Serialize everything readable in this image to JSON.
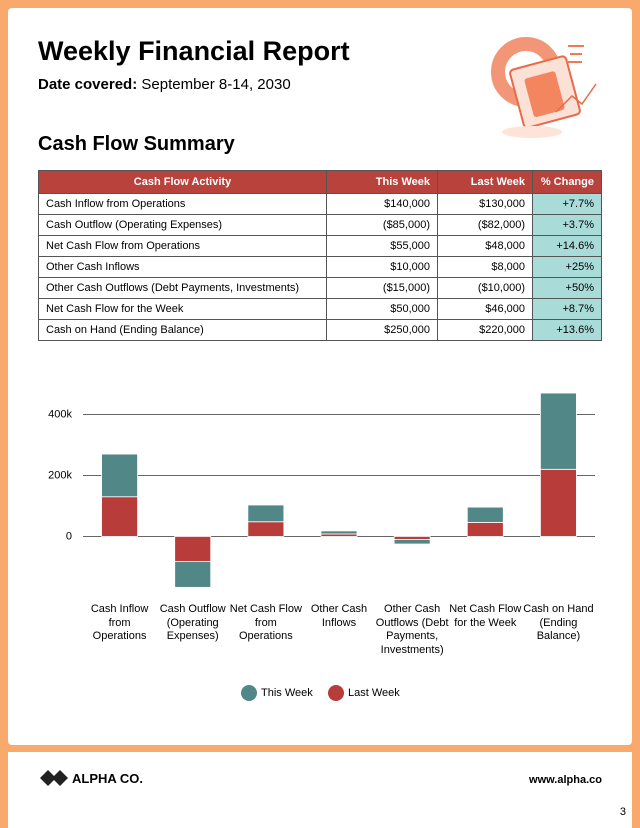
{
  "header": {
    "title": "Weekly Financial Report",
    "date_label": "Date covered:",
    "date": "September 8-14, 2030"
  },
  "section_title": "Cash Flow Summary",
  "table": {
    "columns": [
      "Cash Flow Activity",
      "This Week",
      "Last Week",
      "% Change"
    ],
    "rows": [
      [
        "Cash Inflow from Operations",
        "$140,000",
        "$130,000",
        "+7.7%"
      ],
      [
        "Cash Outflow (Operating Expenses)",
        "($85,000)",
        "($82,000)",
        "+3.7%"
      ],
      [
        "Net Cash Flow from Operations",
        "$55,000",
        "$48,000",
        "+14.6%"
      ],
      [
        "Other Cash Inflows",
        "$10,000",
        "$8,000",
        "+25%"
      ],
      [
        "Other Cash Outflows (Debt Payments, Investments)",
        "($15,000)",
        "($10,000)",
        "+50%"
      ],
      [
        "Net Cash Flow for the Week",
        "$50,000",
        "$46,000",
        "+8.7%"
      ],
      [
        "Cash on Hand (Ending Balance)",
        "$250,000",
        "$220,000",
        "+13.6%"
      ]
    ]
  },
  "chart_data": {
    "type": "stacked_bar",
    "categories": [
      "Cash Inflow from Operations",
      "Cash Outflow (Operating Expenses)",
      "Net Cash Flow from Operations",
      "Other Cash Inflows",
      "Other Cash Outflows (Debt Payments, Investments)",
      "Net Cash Flow for the Week",
      "Cash on Hand (Ending Balance)"
    ],
    "series": [
      {
        "name": "Last Week",
        "color": "#b83c3a",
        "values": [
          130000,
          -82000,
          48000,
          8000,
          -10000,
          46000,
          220000
        ]
      },
      {
        "name": "This Week",
        "color": "#518787",
        "values": [
          140000,
          -85000,
          55000,
          10000,
          -15000,
          50000,
          250000
        ]
      }
    ],
    "legend_order": [
      "This Week",
      "Last Week"
    ],
    "ylim": [
      -180000,
      480000
    ],
    "yticks": [
      0,
      {
        "value": 200000,
        "label": "200k"
      },
      {
        "value": 400000,
        "label": "400k"
      }
    ],
    "grid": true
  },
  "footer": {
    "brand": "ALPHA CO.",
    "url": "www.alpha.co",
    "page": "3"
  }
}
